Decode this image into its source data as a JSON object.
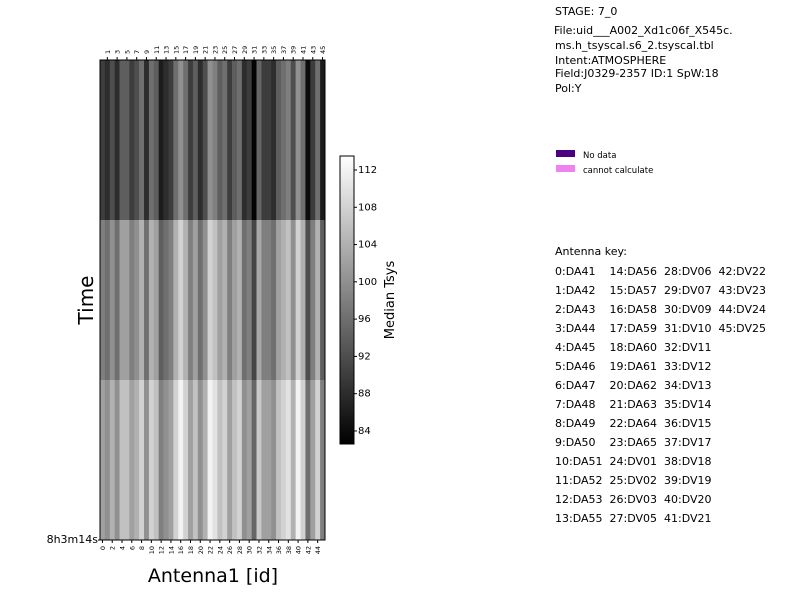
{
  "chart_data": {
    "type": "heatmap",
    "xlabel": "Antenna1 [id]",
    "ylabel": "Time",
    "y_tick_label": "8h3m14s",
    "x_ticks_bottom": [
      "0",
      "2",
      "4",
      "6",
      "8",
      "10",
      "12",
      "14",
      "16",
      "18",
      "20",
      "22",
      "24",
      "26",
      "28",
      "30",
      "32",
      "34",
      "36",
      "38",
      "40",
      "42",
      "44"
    ],
    "x_ticks_top": [
      "1",
      "3",
      "5",
      "7",
      "9",
      "11",
      "13",
      "15",
      "17",
      "19",
      "21",
      "23",
      "25",
      "27",
      "29",
      "31",
      "33",
      "35",
      "37",
      "39",
      "41",
      "43",
      "45"
    ],
    "colorbar_label": "Median Tsys",
    "colorbar_ticks": [
      "84",
      "88",
      "92",
      "96",
      "100",
      "104",
      "108",
      "112"
    ],
    "colorbar_range": [
      82.6,
      113.5
    ],
    "colormap": "gray",
    "antenna_ids": [
      0,
      1,
      2,
      3,
      4,
      5,
      6,
      7,
      8,
      9,
      10,
      11,
      12,
      13,
      14,
      15,
      16,
      17,
      18,
      19,
      20,
      21,
      22,
      23,
      24,
      25,
      26,
      27,
      28,
      29,
      30,
      31,
      32,
      33,
      34,
      35,
      36,
      37,
      38,
      39,
      40,
      41,
      42,
      43,
      44,
      45
    ],
    "rows": [
      [
        90,
        88,
        92,
        88,
        94,
        94,
        90,
        92,
        96,
        88,
        96,
        94,
        86,
        88,
        90,
        96,
        100,
        96,
        90,
        94,
        88,
        92,
        100,
        98,
        94,
        96,
        90,
        94,
        96,
        88,
        90,
        83,
        95,
        90,
        90,
        88,
        94,
        96,
        98,
        92,
        100,
        96,
        84,
        90,
        96,
        86
      ],
      [
        98,
        96,
        100,
        96,
        102,
        102,
        98,
        100,
        104,
        96,
        104,
        102,
        94,
        96,
        98,
        104,
        108,
        104,
        98,
        102,
        96,
        100,
        108,
        106,
        102,
        104,
        98,
        102,
        104,
        96,
        98,
        91,
        103,
        98,
        98,
        96,
        102,
        104,
        106,
        100,
        108,
        104,
        92,
        98,
        104,
        94
      ],
      [
        102,
        100,
        104,
        100,
        106,
        106,
        102,
        104,
        108,
        100,
        108,
        106,
        98,
        100,
        102,
        108,
        112,
        108,
        102,
        106,
        100,
        104,
        112,
        110,
        106,
        108,
        102,
        106,
        108,
        100,
        102,
        95,
        107,
        102,
        102,
        100,
        106,
        108,
        110,
        104,
        112,
        108,
        96,
        102,
        108,
        98
      ]
    ]
  },
  "info": {
    "stage": "STAGE: 7_0",
    "file_line1": "File:uid___A002_Xd1c06f_X545c.",
    "file_line2": "ms.h_tsyscal.s6_2.tsyscal.tbl",
    "intent": "Intent:ATMOSPHERE",
    "field": "Field:J0329-2357 ID:1 SpW:18",
    "pol": "Pol:Y"
  },
  "legend": {
    "items": [
      {
        "label": "No data",
        "color": "#4b0082"
      },
      {
        "label": "cannot calculate",
        "color": "#ee82ee"
      }
    ]
  },
  "antenna_key": {
    "title": "Antenna key:",
    "lines": [
      "0:DA41    14:DA56  28:DV06  42:DV22",
      "1:DA42    15:DA57  29:DV07  43:DV23",
      "2:DA43    16:DA58  30:DV09  44:DV24",
      "3:DA44    17:DA59  31:DV10  45:DV25",
      "4:DA45    18:DA60  32:DV11",
      "5:DA46    19:DA61  33:DV12",
      "6:DA47    20:DA62  34:DV13",
      "7:DA48    21:DA63  35:DV14",
      "8:DA49    22:DA64  36:DV15",
      "9:DA50    23:DA65  37:DV17",
      "10:DA51  24:DV01  38:DV18",
      "11:DA52  25:DV02  39:DV19",
      "12:DA53  26:DV03  40:DV20",
      "13:DA55  27:DV05  41:DV21"
    ]
  }
}
